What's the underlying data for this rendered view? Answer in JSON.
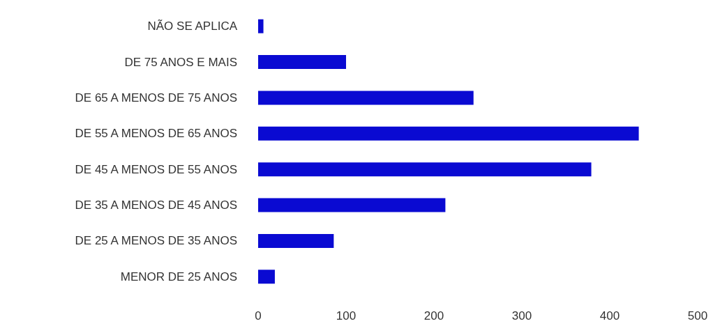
{
  "chart_data": {
    "type": "bar",
    "orientation": "horizontal",
    "categories": [
      "NÃO SE APLICA",
      "DE 75 ANOS E MAIS",
      "DE 65 A MENOS DE 75 ANOS",
      "DE 55 A MENOS DE 65 ANOS",
      "DE 45 A MENOS DE 55 ANOS",
      "DE 35 A MENOS DE 45 ANOS",
      "DE 25 A MENOS DE 35 ANOS",
      "MENOR DE 25 ANOS"
    ],
    "values": [
      6,
      100,
      245,
      433,
      379,
      213,
      86,
      19
    ],
    "color": "#0a0ad2",
    "xlim": [
      0,
      500
    ],
    "xticks": [
      0,
      100,
      200,
      300,
      400,
      500
    ],
    "grid": false
  }
}
